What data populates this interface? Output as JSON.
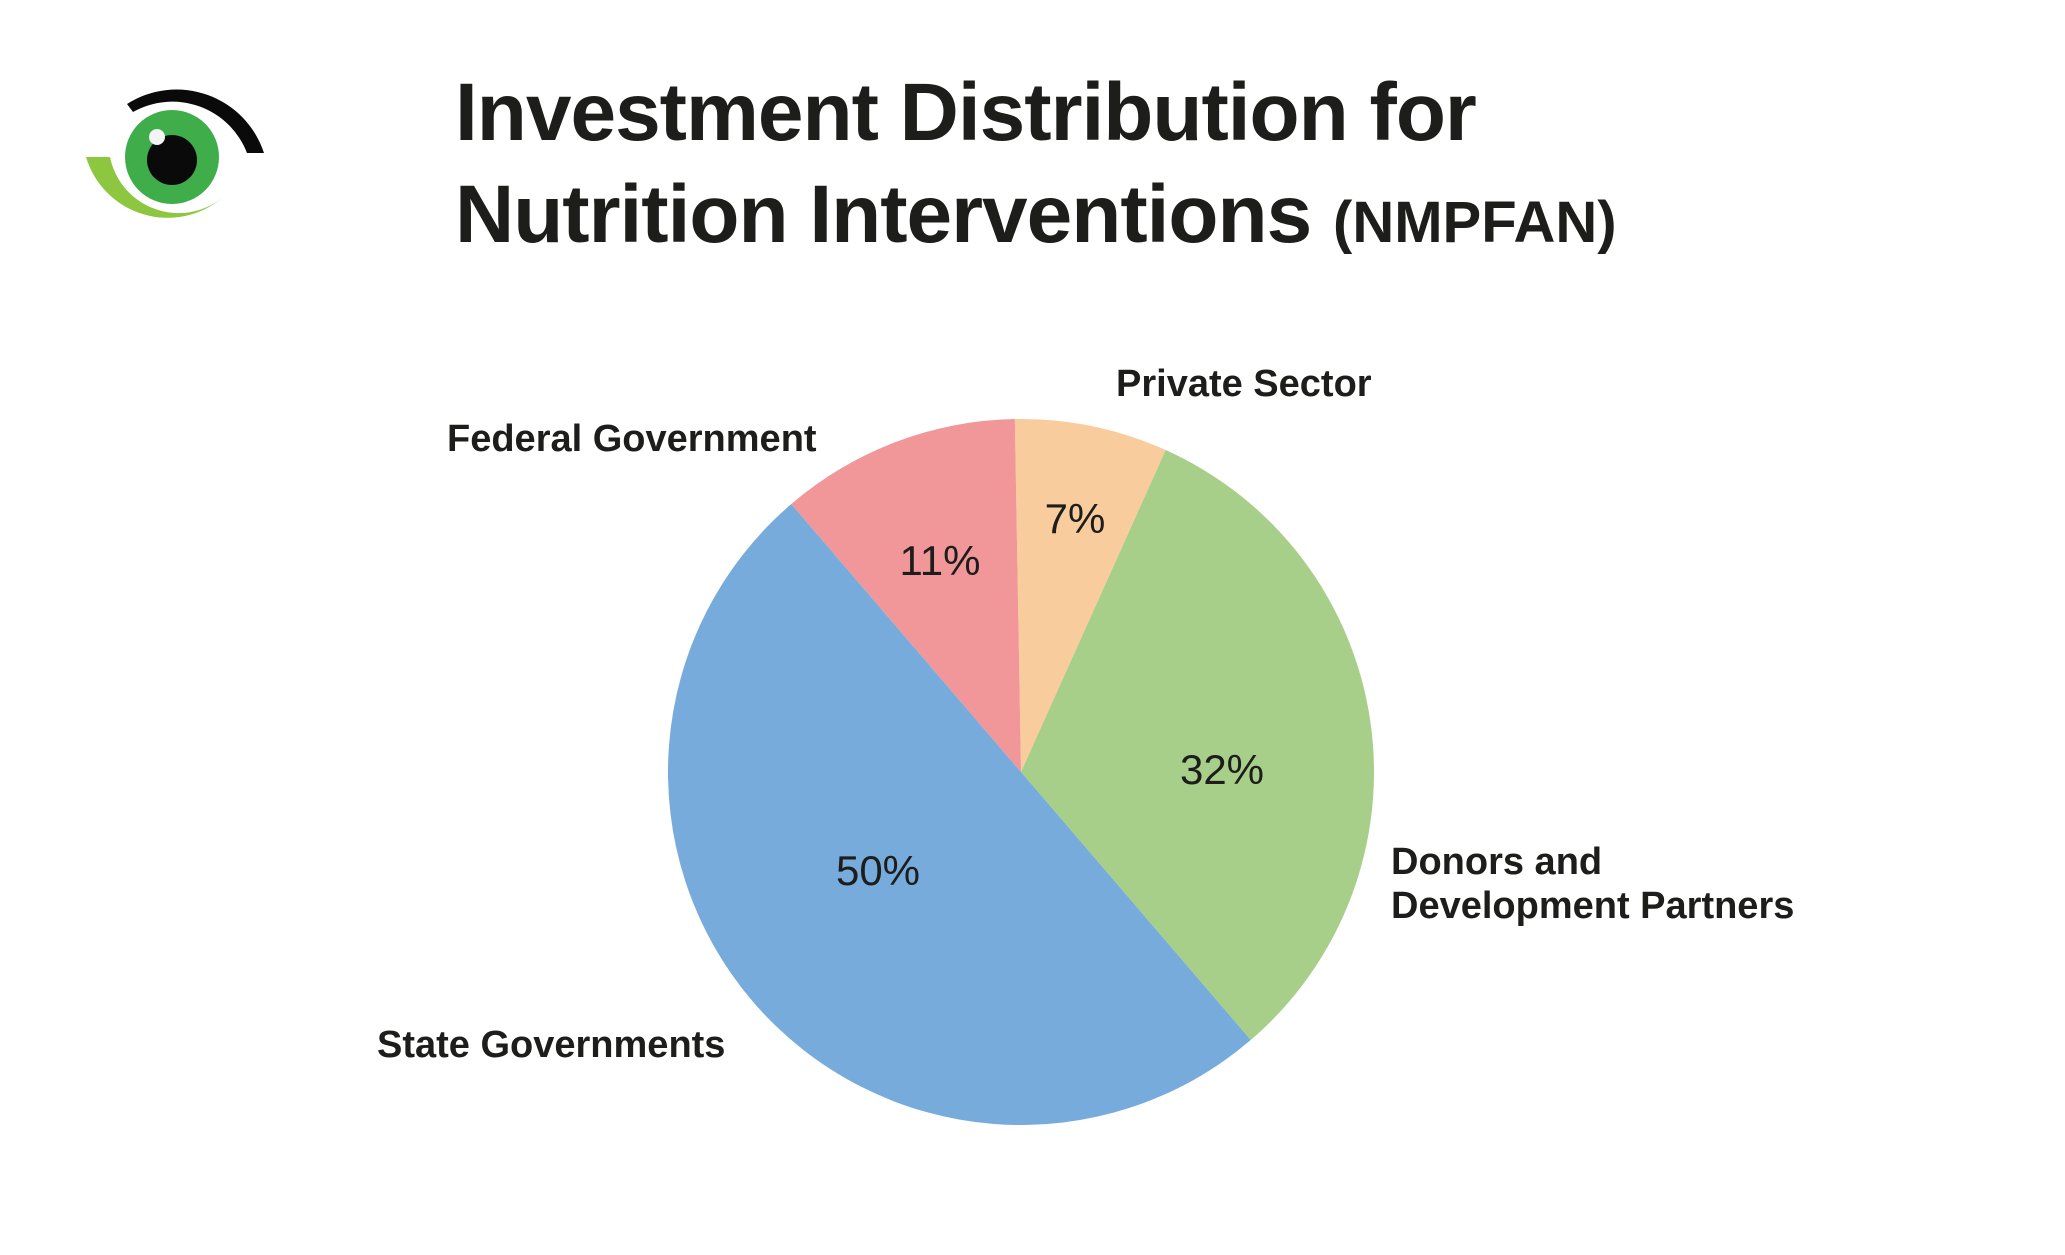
{
  "header": {
    "title_line1": "Investment Distribution for",
    "title_line2": "Nutrition Interventions",
    "title_abbr": "(NMPFAN)",
    "logo": "eye-logo-icon"
  },
  "colors": {
    "federal_government": "#F1979A",
    "private_sector": "#F9CC9E",
    "donors": "#A8CF8A",
    "state_governments": "#77ABDC",
    "text": "#1d1d1b",
    "logo_green": "#3FAE4A",
    "logo_light_green": "#8DC63F",
    "logo_black": "#0a0a0a"
  },
  "labels": {
    "federal": "Federal Government",
    "private": "Private Sector",
    "donors_line1": "Donors and",
    "donors_line2": "Development Partners",
    "state": "State Governments"
  },
  "percent_labels": {
    "federal": "11%",
    "private": "7%",
    "donors": "32%",
    "state": "50%"
  },
  "chart_data": {
    "type": "pie",
    "title": "Investment Distribution for Nutrition Interventions (NMPFAN)",
    "categories": [
      "Private Sector",
      "Donors and Development Partners",
      "State Governments",
      "Federal Government"
    ],
    "values": [
      7,
      32,
      50,
      11
    ],
    "unit": "%",
    "colors": [
      "#F9CC9E",
      "#A8CF8A",
      "#77ABDC",
      "#F1979A"
    ],
    "start_angle_deg": -1,
    "direction": "clockwise",
    "data_labels": [
      "7%",
      "32%",
      "50%",
      "11%"
    ],
    "legend": "none (direct labels)"
  }
}
